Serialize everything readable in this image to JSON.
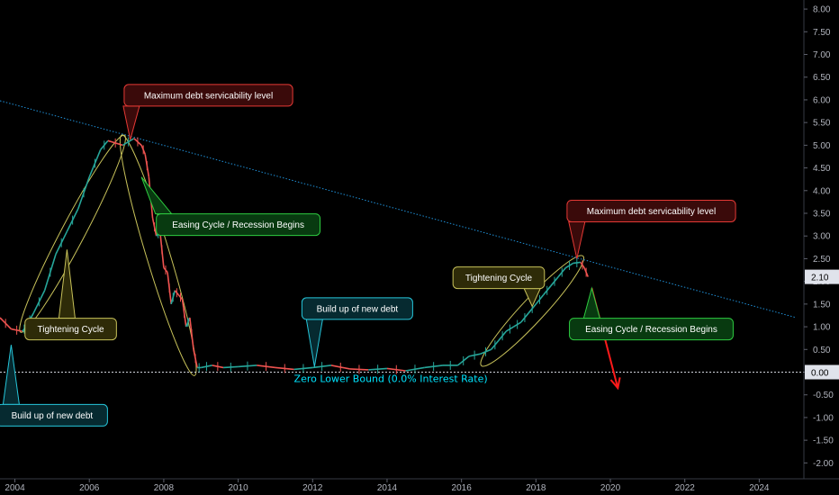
{
  "chart_data": {
    "type": "line",
    "x_axis": {
      "range": [
        2003.6,
        2025.2
      ],
      "ticks": [
        2004,
        2006,
        2008,
        2010,
        2012,
        2014,
        2016,
        2018,
        2020,
        2022,
        2024
      ],
      "tick_labels": [
        "2004",
        "2006",
        "2008",
        "2010",
        "2012",
        "2014",
        "2016",
        "2018",
        "2020",
        "2022",
        "2024"
      ]
    },
    "y_axis": {
      "range": [
        -2.35,
        8.2
      ],
      "position": "right",
      "ticks": [
        8,
        7.5,
        7,
        6.5,
        6,
        5.5,
        5,
        4.5,
        4,
        3.5,
        3,
        2.5,
        2,
        1.5,
        1,
        0.5,
        0,
        -0.5,
        -1,
        -1.5,
        -2
      ],
      "tick_labels": [
        "8.00",
        "7.50",
        "7.00",
        "6.50",
        "6.00",
        "5.50",
        "5.00",
        "4.50",
        "4.00",
        "3.50",
        "3.00",
        "2.50",
        "2.00",
        "1.50",
        "1.00",
        "0.50",
        "0.00",
        "-0.50",
        "-1.00",
        "-1.50",
        "-2.00"
      ]
    },
    "grid": false,
    "series": [
      {
        "color": "#26a69a",
        "down_color": "#ef5350",
        "x": [
          2003.6,
          2003.9,
          2004.2,
          2004.3,
          2004.5,
          2004.8,
          2005.1,
          2005.4,
          2005.7,
          2006.0,
          2006.3,
          2006.5,
          2006.9,
          2007.2,
          2007.4,
          2007.5,
          2007.6,
          2007.7,
          2007.8,
          2007.9,
          2008.0,
          2008.1,
          2008.2,
          2008.3,
          2008.4,
          2008.5,
          2008.6,
          2008.7,
          2008.8,
          2008.9,
          2009.0,
          2009.3,
          2009.6,
          2010.0,
          2010.5,
          2011.0,
          2011.5,
          2012.0,
          2012.5,
          2013.0,
          2013.5,
          2014.0,
          2014.5,
          2015.0,
          2015.5,
          2015.9,
          2016.2,
          2016.5,
          2016.8,
          2017.0,
          2017.2,
          2017.4,
          2017.6,
          2017.8,
          2018.0,
          2018.2,
          2018.4,
          2018.6,
          2018.8,
          2019.0,
          2019.2,
          2019.3,
          2019.4
        ],
        "y": [
          1.2,
          0.95,
          0.9,
          1.0,
          1.3,
          1.8,
          2.6,
          3.1,
          3.6,
          4.3,
          4.9,
          5.1,
          5.0,
          5.15,
          5.0,
          4.8,
          4.3,
          3.4,
          3.0,
          3.1,
          2.3,
          2.2,
          1.5,
          1.8,
          1.7,
          1.6,
          1.0,
          1.2,
          0.5,
          0.1,
          0.1,
          0.15,
          0.1,
          0.12,
          0.15,
          0.1,
          0.06,
          0.1,
          0.15,
          0.07,
          0.05,
          0.08,
          0.03,
          0.1,
          0.15,
          0.15,
          0.35,
          0.4,
          0.5,
          0.7,
          0.9,
          1.0,
          1.1,
          1.3,
          1.5,
          1.7,
          1.9,
          2.1,
          2.3,
          2.4,
          2.42,
          2.3,
          2.1
        ]
      }
    ],
    "trendline": {
      "color": "#1f8fd6",
      "points": [
        [
          2003.6,
          5.98
        ],
        [
          2025.0,
          1.2
        ]
      ]
    },
    "zero_line": {
      "value": 0,
      "label": "Zero Lower Bound (0.0% Interest Rate)",
      "color": "#00e5ff"
    },
    "current_price": "2.10",
    "zero_tag": "0.00",
    "ellipses": [
      {
        "color": "#c8c25a",
        "from": [
          2004.2,
          0.95
        ],
        "to": [
          2006.9,
          5.15
        ]
      },
      {
        "color": "#c8c25a",
        "from": [
          2006.9,
          5.15
        ],
        "to": [
          2008.8,
          0.0
        ]
      },
      {
        "color": "#c8c25a",
        "from": [
          2016.6,
          0.2
        ],
        "to": [
          2019.2,
          2.5
        ]
      }
    ],
    "forecast_arrows": [
      {
        "color": "#ff1a1a",
        "from": [
          2019.5,
          1.85
        ],
        "to": [
          2020.2,
          -0.35
        ]
      }
    ],
    "annotations": [
      {
        "text": "Maximum debt servicability level",
        "style": "red",
        "x": 2009.2,
        "y": 6.1,
        "pointer": [
          2007.1,
          5.12
        ]
      },
      {
        "text": "Easing Cycle / Recession Begins",
        "style": "green",
        "x": 2010.0,
        "y": 3.25,
        "pointer": [
          2007.4,
          4.3
        ]
      },
      {
        "text": "Tightening Cycle",
        "style": "yellow",
        "x": 2005.5,
        "y": 0.95,
        "pointer": [
          2005.4,
          2.7
        ]
      },
      {
        "text": "Build up of new debt",
        "style": "cyan",
        "x": 2005.0,
        "y": -0.95,
        "pointer": [
          2003.9,
          0.6
        ]
      },
      {
        "text": "Build up of new debt",
        "style": "cyan",
        "x": 2013.2,
        "y": 1.4,
        "pointer": [
          2012.05,
          0.12
        ]
      },
      {
        "text": "Tightening Cycle",
        "style": "yellow",
        "x": 2017.0,
        "y": 2.08,
        "pointer": [
          2017.9,
          1.45
        ]
      },
      {
        "text": "Maximum debt servicability level",
        "style": "red",
        "x": 2021.1,
        "y": 3.55,
        "pointer": [
          2019.1,
          2.5
        ]
      },
      {
        "text": "Easing Cycle / Recession Begins",
        "style": "green",
        "x": 2021.1,
        "y": 0.95,
        "pointer": [
          2019.5,
          1.85
        ]
      }
    ],
    "styles": {
      "red": {
        "bg": "#3a0a0a",
        "border": "#e53935",
        "text": "#ffffff"
      },
      "green": {
        "bg": "#083a10",
        "border": "#2ecc40",
        "text": "#ffffff"
      },
      "yellow": {
        "bg": "#2e2b08",
        "border": "#c8c25a",
        "text": "#ffffff"
      },
      "cyan": {
        "bg": "#062a30",
        "border": "#26c6da",
        "text": "#ffffff"
      }
    }
  }
}
